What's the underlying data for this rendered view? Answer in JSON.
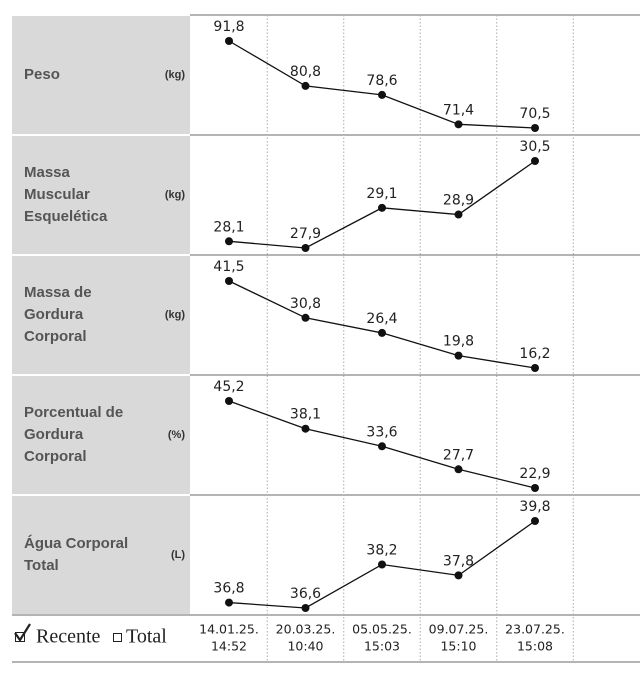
{
  "columns": [
    {
      "date": "14.01.25.",
      "time": "14:52"
    },
    {
      "date": "20.03.25.",
      "time": "10:40"
    },
    {
      "date": "05.05.25.",
      "time": "15:03"
    },
    {
      "date": "09.07.25.",
      "time": "15:10"
    },
    {
      "date": "23.07.25.",
      "time": "15:08"
    }
  ],
  "legend": {
    "recent": "Recente",
    "total": "Total"
  },
  "chart_data": [
    {
      "type": "line",
      "title": [
        "Peso"
      ],
      "unit": "(kg)",
      "color": "#111111",
      "values": [
        91.8,
        80.8,
        78.6,
        71.4,
        70.5
      ],
      "value_labels": [
        "91,8",
        "80,8",
        "78,6",
        "71,4",
        "70,5"
      ]
    },
    {
      "type": "line",
      "title": [
        "Massa",
        "Muscular",
        "Esquelética"
      ],
      "unit": "(kg)",
      "color": "#111111",
      "values": [
        28.1,
        27.9,
        29.1,
        28.9,
        30.5
      ],
      "value_labels": [
        "28,1",
        "27,9",
        "29,1",
        "28,9",
        "30,5"
      ]
    },
    {
      "type": "line",
      "title": [
        "Massa de",
        "Gordura",
        "Corporal"
      ],
      "unit": "(kg)",
      "color": "#111111",
      "values": [
        41.5,
        30.8,
        26.4,
        19.8,
        16.2
      ],
      "value_labels": [
        "41,5",
        "30,8",
        "26,4",
        "19,8",
        "16,2"
      ]
    },
    {
      "type": "line",
      "title": [
        "Porcentual de",
        "Gordura",
        "Corporal"
      ],
      "unit": "(%)",
      "color": "#111111",
      "values": [
        45.2,
        38.1,
        33.6,
        27.7,
        22.9
      ],
      "value_labels": [
        "45,2",
        "38,1",
        "33,6",
        "27,7",
        "22,9"
      ]
    },
    {
      "type": "line",
      "title": [
        "Água Corporal",
        "Total"
      ],
      "unit": "(L)",
      "color": "#111111",
      "values": [
        36.8,
        36.6,
        38.2,
        37.8,
        39.8
      ],
      "value_labels": [
        "36,8",
        "36,6",
        "38,2",
        "37,8",
        "39,8"
      ]
    }
  ]
}
